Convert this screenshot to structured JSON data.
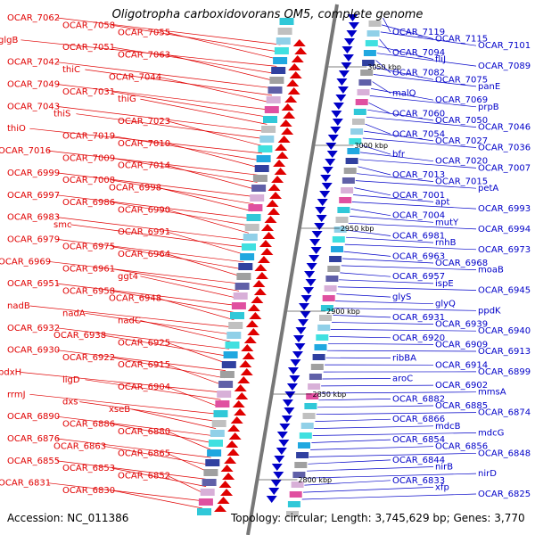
{
  "title": "Oligotropha carboxidovorans OM5, complete genome",
  "accession": "Accession: NC_011386",
  "summary": "Topology: circular; Length: 3,745,629 bp; Genes: 3,770",
  "colors": {
    "reverse_strand": "#e00000",
    "forward_strand": "#0000c8",
    "backbone": "#777777"
  },
  "kbp_markers": [
    "3050 kbp",
    "3000 kbp",
    "2950 kbp",
    "2900 kbp",
    "2850 kbp",
    "2800 kbp"
  ],
  "labels_left": [
    "OCAR_7062",
    "OCAR_7058",
    "OCAR_7055",
    "glgB",
    "OCAR_7051",
    "OCAR_7063",
    "OCAR_7042",
    "thiC",
    "OCAR_7044",
    "OCAR_7049",
    "OCAR_7031",
    "thiG",
    "OCAR_7043",
    "thiS",
    "OCAR_7023",
    "thiO",
    "OCAR_7019",
    "OCAR_7010",
    "OCAR_7016",
    "OCAR_7009",
    "OCAR_7014",
    "OCAR_6999",
    "OCAR_7008",
    "OCAR_6998",
    "OCAR_6997",
    "OCAR_6986",
    "OCAR_6990",
    "OCAR_6983",
    "smc",
    "OCAR_6991",
    "OCAR_6979",
    "OCAR_6975",
    "OCAR_6964",
    "OCAR_6969",
    "OCAR_6961",
    "ggt4",
    "OCAR_6951",
    "OCAR_6958",
    "OCAR_6948",
    "nadB",
    "nadA",
    "nadC",
    "OCAR_6932",
    "OCAR_6938",
    "OCAR_6925",
    "OCAR_6930",
    "OCAR_6922",
    "OCAR_6915",
    "pdxH",
    "ligD",
    "OCAR_6904",
    "rrmJ",
    "dxs",
    "xseB",
    "OCAR_6890",
    "OCAR_6886",
    "OCAR_6880",
    "OCAR_6876",
    "OCAR_6863",
    "OCAR_6865",
    "OCAR_6855",
    "OCAR_6853",
    "OCAR_6852",
    "OCAR_6831",
    "OCAR_6830"
  ],
  "labels_right": [
    "OCAR_7119",
    "OCAR_7115",
    "OCAR_7101",
    "OCAR_7094",
    "fliJ",
    "OCAR_7089",
    "OCAR_7082",
    "OCAR_7075",
    "panE",
    "malQ",
    "OCAR_7069",
    "prpB",
    "OCAR_7060",
    "OCAR_7050",
    "OCAR_7046",
    "OCAR_7054",
    "OCAR_7027",
    "OCAR_7036",
    "bfr",
    "OCAR_7020",
    "OCAR_7007",
    "OCAR_7013",
    "OCAR_7015",
    "petA",
    "OCAR_7001",
    "apt",
    "OCAR_6993",
    "OCAR_7004",
    "mutY",
    "OCAR_6994",
    "OCAR_6981",
    "rnhB",
    "OCAR_6973",
    "OCAR_6963",
    "OCAR_6968",
    "moaB",
    "OCAR_6957",
    "ispE",
    "OCAR_6945",
    "glyS",
    "glyQ",
    "ppdK",
    "OCAR_6931",
    "OCAR_6939",
    "OCAR_6940",
    "OCAR_6920",
    "OCAR_6909",
    "OCAR_6913",
    "ribBA",
    "OCAR_6914",
    "OCAR_6899",
    "aroC",
    "OCAR_6902",
    "mmsA",
    "OCAR_6882",
    "OCAR_6885",
    "OCAR_6874",
    "OCAR_6866",
    "mdcB",
    "mdcG",
    "OCAR_6854",
    "OCAR_6856",
    "OCAR_6848",
    "OCAR_6844",
    "nirB",
    "nirD",
    "OCAR_6833",
    "xfp",
    "OCAR_6825"
  ]
}
